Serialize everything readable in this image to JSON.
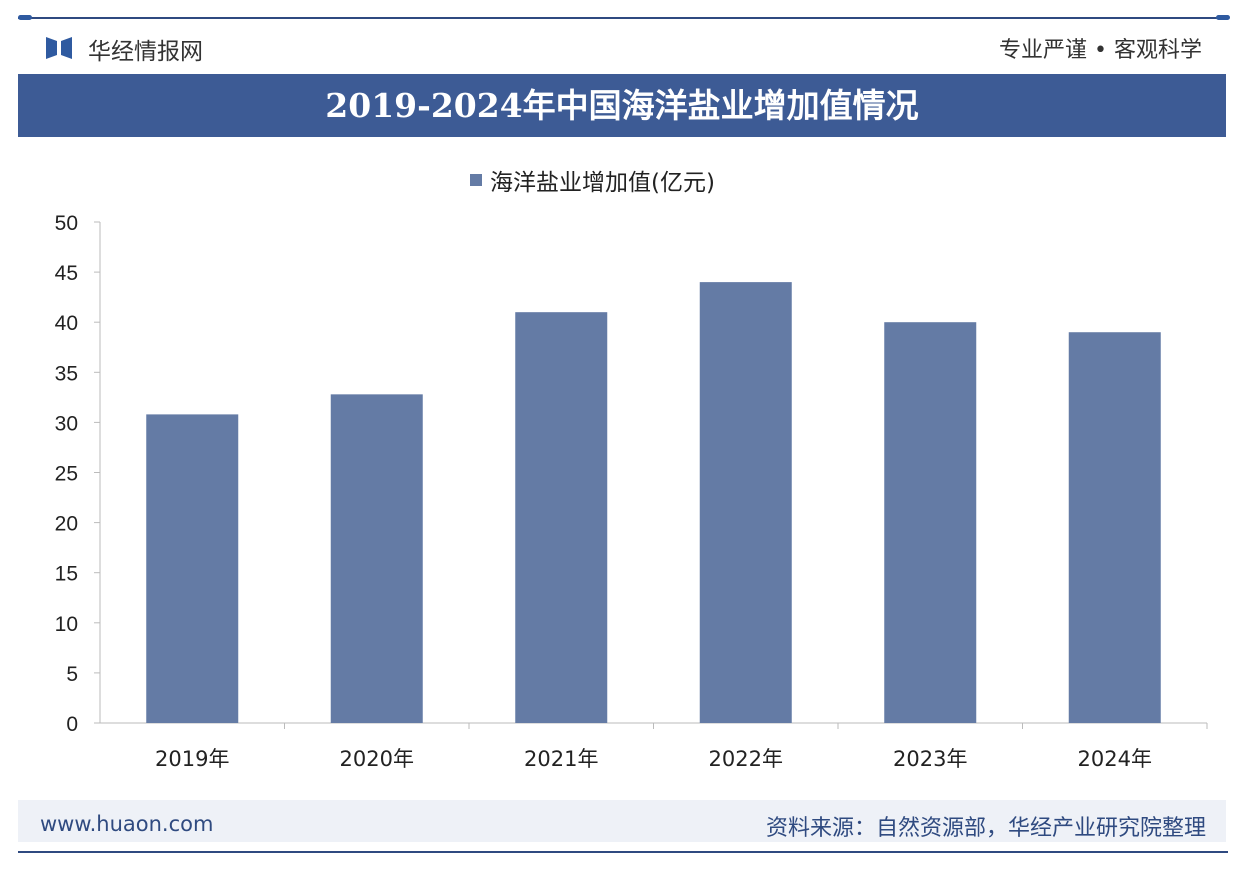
{
  "header": {
    "brand": "华经情报网",
    "slogan": "专业严谨 • 客观科学"
  },
  "footer": {
    "url": "www.huaon.com",
    "source": "资料来源：自然资源部，华经产业研究院整理"
  },
  "colors": {
    "bar": "#647ba5",
    "title_bg": "#3d5b95"
  },
  "chart_data": {
    "type": "bar",
    "title": "2019-2024年中国海洋盐业增加值情况",
    "categories": [
      "2019年",
      "2020年",
      "2021年",
      "2022年",
      "2023年",
      "2024年"
    ],
    "series": [
      {
        "name": "海洋盐业增加值(亿元)",
        "values": [
          30.8,
          32.8,
          41.0,
          44.0,
          40.0,
          39.0
        ]
      }
    ],
    "ylim": [
      0,
      50
    ],
    "yticks": [
      0,
      5,
      10,
      15,
      20,
      25,
      30,
      35,
      40,
      45,
      50
    ],
    "legend": "top-center",
    "grid": false
  }
}
